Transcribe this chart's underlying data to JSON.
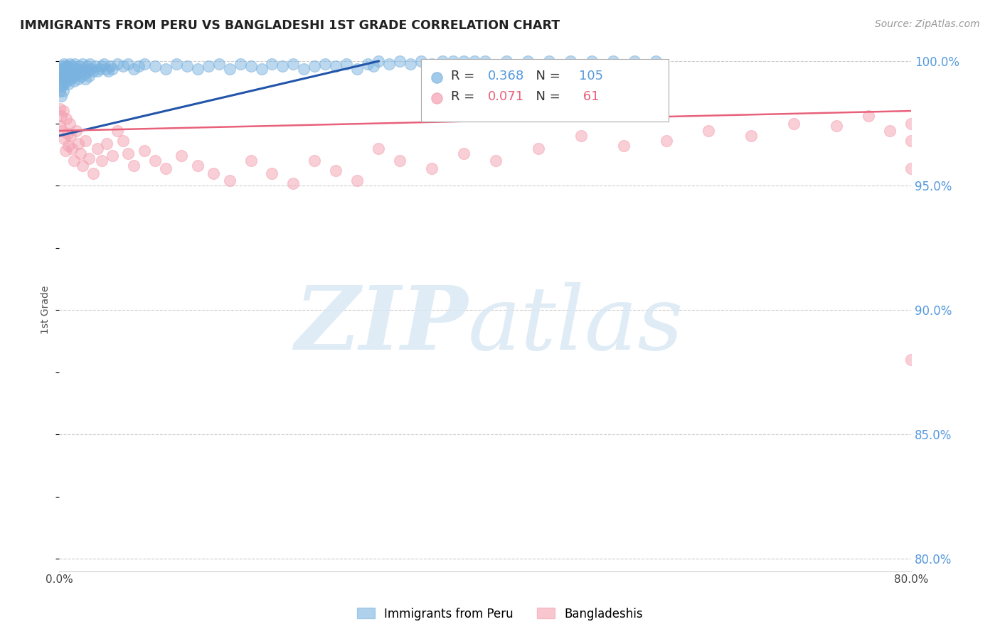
{
  "title": "IMMIGRANTS FROM PERU VS BANGLADESHI 1ST GRADE CORRELATION CHART",
  "source": "Source: ZipAtlas.com",
  "ylabel": "1st Grade",
  "x_min": 0.0,
  "x_max": 0.8,
  "y_min": 0.795,
  "y_max": 1.005,
  "x_ticks": [
    0.0,
    0.1,
    0.2,
    0.3,
    0.4,
    0.5,
    0.6,
    0.7,
    0.8
  ],
  "x_tick_labels": [
    "0.0%",
    "",
    "",
    "",
    "",
    "",
    "",
    "",
    "80.0%"
  ],
  "y_ticks": [
    0.8,
    0.85,
    0.9,
    0.95,
    1.0
  ],
  "y_tick_labels": [
    "80.0%",
    "85.0%",
    "90.0%",
    "95.0%",
    "100.0%"
  ],
  "grid_color": "#cccccc",
  "blue_color": "#7ab3e0",
  "pink_color": "#f4a0b0",
  "blue_line_color": "#2255aa",
  "pink_line_color": "#e8607a",
  "legend_blue_label": "Immigrants from Peru",
  "legend_pink_label": "Bangladeshis",
  "R_blue": 0.368,
  "N_blue": 105,
  "R_pink": 0.071,
  "N_pink": 61,
  "title_color": "#222222",
  "axis_label_color": "#555555",
  "right_axis_color": "#5599dd",
  "blue_line_x0": 0.0,
  "blue_line_y0": 0.97,
  "blue_line_x1": 0.3,
  "blue_line_y1": 1.0,
  "pink_line_x0": 0.0,
  "pink_line_y0": 0.972,
  "pink_line_x1": 0.8,
  "pink_line_y1": 0.98,
  "blue_scatter_x": [
    0.001,
    0.001,
    0.001,
    0.002,
    0.002,
    0.002,
    0.003,
    0.003,
    0.003,
    0.004,
    0.004,
    0.004,
    0.005,
    0.005,
    0.005,
    0.006,
    0.006,
    0.007,
    0.007,
    0.008,
    0.008,
    0.009,
    0.009,
    0.01,
    0.01,
    0.011,
    0.011,
    0.012,
    0.012,
    0.013,
    0.014,
    0.015,
    0.015,
    0.016,
    0.017,
    0.018,
    0.019,
    0.02,
    0.021,
    0.022,
    0.023,
    0.024,
    0.025,
    0.026,
    0.027,
    0.028,
    0.029,
    0.03,
    0.032,
    0.034,
    0.036,
    0.038,
    0.04,
    0.042,
    0.044,
    0.046,
    0.048,
    0.05,
    0.055,
    0.06,
    0.065,
    0.07,
    0.075,
    0.08,
    0.09,
    0.1,
    0.11,
    0.12,
    0.13,
    0.14,
    0.15,
    0.16,
    0.17,
    0.18,
    0.19,
    0.2,
    0.21,
    0.22,
    0.23,
    0.24,
    0.25,
    0.26,
    0.27,
    0.28,
    0.29,
    0.295,
    0.3,
    0.31,
    0.32,
    0.33,
    0.34,
    0.35,
    0.36,
    0.37,
    0.38,
    0.39,
    0.4,
    0.42,
    0.44,
    0.46,
    0.48,
    0.5,
    0.52,
    0.54,
    0.56
  ],
  "blue_scatter_y": [
    0.997,
    0.993,
    0.988,
    0.996,
    0.991,
    0.986,
    0.998,
    0.994,
    0.99,
    0.997,
    0.993,
    0.988,
    0.999,
    0.995,
    0.991,
    0.998,
    0.993,
    0.997,
    0.992,
    0.998,
    0.994,
    0.996,
    0.991,
    0.999,
    0.994,
    0.997,
    0.993,
    0.998,
    0.994,
    0.996,
    0.992,
    0.999,
    0.994,
    0.997,
    0.995,
    0.993,
    0.998,
    0.996,
    0.994,
    0.999,
    0.997,
    0.995,
    0.993,
    0.998,
    0.996,
    0.994,
    0.999,
    0.997,
    0.996,
    0.998,
    0.996,
    0.997,
    0.998,
    0.999,
    0.997,
    0.996,
    0.998,
    0.997,
    0.999,
    0.998,
    0.999,
    0.997,
    0.998,
    0.999,
    0.998,
    0.997,
    0.999,
    0.998,
    0.997,
    0.998,
    0.999,
    0.997,
    0.999,
    0.998,
    0.997,
    0.999,
    0.998,
    0.999,
    0.997,
    0.998,
    0.999,
    0.998,
    0.999,
    0.997,
    0.999,
    0.998,
    1.0,
    0.999,
    1.0,
    0.999,
    1.0,
    0.999,
    1.0,
    1.0,
    1.0,
    1.0,
    1.0,
    1.0,
    1.0,
    1.0,
    1.0,
    1.0,
    1.0,
    1.0,
    1.0
  ],
  "pink_scatter_x": [
    0.001,
    0.001,
    0.002,
    0.003,
    0.004,
    0.005,
    0.006,
    0.007,
    0.008,
    0.009,
    0.01,
    0.011,
    0.012,
    0.014,
    0.016,
    0.018,
    0.02,
    0.022,
    0.025,
    0.028,
    0.032,
    0.036,
    0.04,
    0.045,
    0.05,
    0.055,
    0.06,
    0.065,
    0.07,
    0.08,
    0.09,
    0.1,
    0.115,
    0.13,
    0.145,
    0.16,
    0.18,
    0.2,
    0.22,
    0.24,
    0.26,
    0.28,
    0.3,
    0.32,
    0.35,
    0.38,
    0.41,
    0.45,
    0.49,
    0.53,
    0.57,
    0.61,
    0.65,
    0.69,
    0.73,
    0.76,
    0.78,
    0.8,
    0.8,
    0.8,
    0.8
  ],
  "pink_scatter_y": [
    0.981,
    0.974,
    0.978,
    0.972,
    0.98,
    0.969,
    0.964,
    0.977,
    0.971,
    0.966,
    0.975,
    0.97,
    0.965,
    0.96,
    0.972,
    0.967,
    0.963,
    0.958,
    0.968,
    0.961,
    0.955,
    0.965,
    0.96,
    0.967,
    0.962,
    0.972,
    0.968,
    0.963,
    0.958,
    0.964,
    0.96,
    0.957,
    0.962,
    0.958,
    0.955,
    0.952,
    0.96,
    0.955,
    0.951,
    0.96,
    0.956,
    0.952,
    0.965,
    0.96,
    0.957,
    0.963,
    0.96,
    0.965,
    0.97,
    0.966,
    0.968,
    0.972,
    0.97,
    0.975,
    0.974,
    0.978,
    0.972,
    0.975,
    0.968,
    0.88,
    0.957
  ]
}
